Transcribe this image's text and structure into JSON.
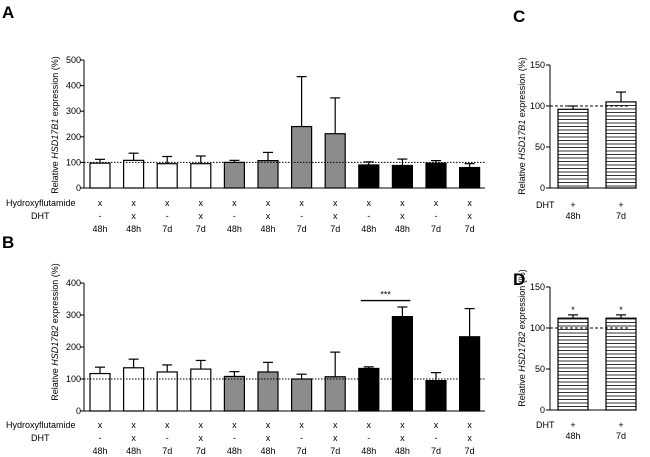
{
  "colors": {
    "white": "#ffffff",
    "gray": "#8c8c8c",
    "black": "#000000",
    "axis": "#000000"
  },
  "chart_data": [
    {
      "panel": "A",
      "type": "bar",
      "ylabel": "Relative HSD17B1 expression (%)",
      "ylabel_pre": "Relative ",
      "ylabel_gene": "HSD17B1",
      "ylabel_post": " expression (%)",
      "ylim": [
        0,
        500
      ],
      "yticks": [
        "0",
        "100",
        "200",
        "300",
        "400",
        "500"
      ],
      "reference_line": 100,
      "row_labels": [
        "Hydroxyflutamide",
        "DHT"
      ],
      "hydroxyflutamide": [
        "x",
        "x",
        "x",
        "x",
        "x",
        "x",
        "x",
        "x",
        "x",
        "x",
        "x",
        "x"
      ],
      "dht": [
        "-",
        "x",
        "-",
        "x",
        "-",
        "x",
        "-",
        "x",
        "-",
        "x",
        "-",
        "x"
      ],
      "time": [
        "48h",
        "48h",
        "7d",
        "7d",
        "48h",
        "48h",
        "7d",
        "7d",
        "48h",
        "48h",
        "7d",
        "7d"
      ],
      "fills": [
        "white",
        "white",
        "white",
        "white",
        "gray",
        "gray",
        "gray",
        "gray",
        "black",
        "black",
        "black",
        "black"
      ],
      "values": [
        97,
        108,
        95,
        95,
        100,
        107,
        240,
        212,
        90,
        88,
        97,
        80
      ],
      "errors": [
        15,
        28,
        28,
        30,
        8,
        32,
        195,
        140,
        12,
        25,
        10,
        15
      ],
      "significance": []
    },
    {
      "panel": "B",
      "type": "bar",
      "ylabel": "Relative HSD17B2 expression (%)",
      "ylabel_pre": "Relative ",
      "ylabel_gene": "HSD17B2",
      "ylabel_post": " expression (%)",
      "ylim": [
        0,
        400
      ],
      "yticks": [
        "0",
        "100",
        "200",
        "300",
        "400"
      ],
      "reference_line": 100,
      "row_labels": [
        "Hydroxyflutamide",
        "DHT"
      ],
      "hydroxyflutamide": [
        "x",
        "x",
        "x",
        "x",
        "x",
        "x",
        "x",
        "x",
        "x",
        "x",
        "x",
        "x"
      ],
      "dht": [
        "-",
        "x",
        "-",
        "x",
        "-",
        "x",
        "-",
        "x",
        "-",
        "x",
        "-",
        "x"
      ],
      "time": [
        "48h",
        "48h",
        "7d",
        "7d",
        "48h",
        "48h",
        "7d",
        "7d",
        "48h",
        "48h",
        "7d",
        "7d"
      ],
      "fills": [
        "white",
        "white",
        "white",
        "white",
        "gray",
        "gray",
        "gray",
        "gray",
        "black",
        "black",
        "black",
        "black"
      ],
      "values": [
        117,
        135,
        122,
        131,
        108,
        122,
        100,
        107,
        133,
        295,
        95,
        232
      ],
      "errors": [
        20,
        27,
        22,
        27,
        15,
        30,
        15,
        77,
        5,
        30,
        25,
        88
      ],
      "significance": [
        {
          "from": 8,
          "to": 9,
          "label": "***",
          "y": 345
        }
      ]
    },
    {
      "panel": "C",
      "type": "bar",
      "ylabel": "Relative HSD17B1 expression (%)",
      "ylabel_pre": "Relative ",
      "ylabel_gene": "HSD17B1",
      "ylabel_post": " expression (%)",
      "ylim": [
        0,
        150
      ],
      "yticks": [
        "0",
        "50",
        "100",
        "150"
      ],
      "reference_line": 100,
      "row_labels": [
        "DHT"
      ],
      "dht": [
        "+",
        "+"
      ],
      "time": [
        "48h",
        "7d"
      ],
      "fills": [
        "hatched",
        "hatched"
      ],
      "values": [
        96,
        105
      ],
      "errors": [
        4,
        12
      ],
      "stars": [
        "",
        ""
      ]
    },
    {
      "panel": "D",
      "type": "bar",
      "ylabel": "Relative HSD17B2 expression (%)",
      "ylabel_pre": "Relative ",
      "ylabel_gene": "HSD17B2",
      "ylabel_post": " expression (%)",
      "ylim": [
        0,
        150
      ],
      "yticks": [
        "0",
        "50",
        "100",
        "150"
      ],
      "reference_line": 100,
      "row_labels": [
        "DHT"
      ],
      "dht": [
        "+",
        "+"
      ],
      "time": [
        "48h",
        "7d"
      ],
      "fills": [
        "hatched",
        "hatched"
      ],
      "values": [
        112,
        112
      ],
      "errors": [
        4,
        4
      ],
      "stars": [
        "*",
        "*"
      ]
    }
  ]
}
